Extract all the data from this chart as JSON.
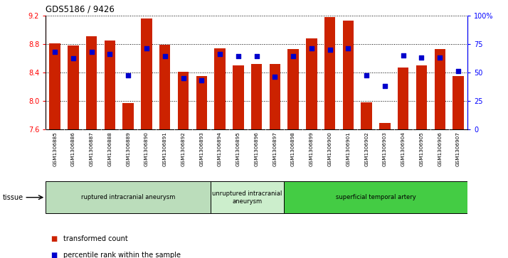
{
  "title": "GDS5186 / 9426",
  "samples": [
    "GSM1306885",
    "GSM1306886",
    "GSM1306887",
    "GSM1306888",
    "GSM1306889",
    "GSM1306890",
    "GSM1306891",
    "GSM1306892",
    "GSM1306893",
    "GSM1306894",
    "GSM1306895",
    "GSM1306896",
    "GSM1306897",
    "GSM1306898",
    "GSM1306899",
    "GSM1306900",
    "GSM1306901",
    "GSM1306902",
    "GSM1306903",
    "GSM1306904",
    "GSM1306905",
    "GSM1306906",
    "GSM1306907"
  ],
  "bar_values": [
    8.81,
    8.78,
    8.91,
    8.85,
    7.97,
    9.16,
    8.79,
    8.41,
    8.35,
    8.74,
    8.5,
    8.52,
    8.52,
    8.73,
    8.88,
    9.18,
    9.13,
    7.98,
    7.69,
    8.47,
    8.5,
    8.73,
    8.35
  ],
  "percentile_values": [
    68,
    62,
    68,
    66,
    47,
    71,
    64,
    45,
    43,
    66,
    64,
    64,
    46,
    64,
    71,
    70,
    71,
    47,
    38,
    65,
    63,
    63,
    51
  ],
  "ylim_left": [
    7.6,
    9.2
  ],
  "ylim_right": [
    0,
    100
  ],
  "yticks_left": [
    7.6,
    8.0,
    8.4,
    8.8,
    9.2
  ],
  "yticks_right": [
    0,
    25,
    50,
    75,
    100
  ],
  "yticklabels_right": [
    "0",
    "25",
    "50",
    "75",
    "100%"
  ],
  "bar_color": "#cc2200",
  "dot_color": "#0000cc",
  "tissue_groups": [
    {
      "label": "ruptured intracranial aneurysm",
      "start": 0,
      "end": 9,
      "color": "#bbddbb"
    },
    {
      "label": "unruptured intracranial\naneurysm",
      "start": 9,
      "end": 13,
      "color": "#cceecc"
    },
    {
      "label": "superficial temporal artery",
      "start": 13,
      "end": 23,
      "color": "#44cc44"
    }
  ],
  "tissue_label": "tissue",
  "legend_items": [
    {
      "label": "transformed count",
      "color": "#cc2200"
    },
    {
      "label": "percentile rank within the sample",
      "color": "#0000cc"
    }
  ],
  "plot_bg_color": "#ffffff",
  "tick_bg_color": "#dddddd"
}
